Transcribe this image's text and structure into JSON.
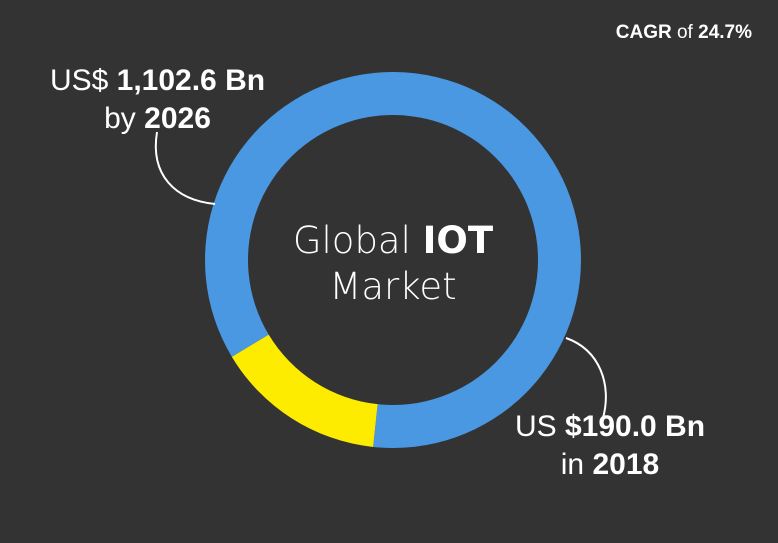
{
  "cagr": {
    "label": "CAGR",
    "of": "of",
    "value": "24.7%"
  },
  "center_title": {
    "line1_regular": "Global",
    "line1_bold": "IOT",
    "line2": "Market"
  },
  "callout_2026": {
    "prefix": "US$",
    "value": "1,102.6 Bn",
    "by": "by",
    "year": "2026"
  },
  "callout_2018": {
    "prefix": "US",
    "value": "$190.0 Bn",
    "in": "in",
    "year": "2018"
  },
  "colors": {
    "background": "#333333",
    "seg_2026": "#4a97e2",
    "seg_2018": "#fdec00",
    "text": "#ffffff"
  },
  "chart_data": {
    "type": "pie",
    "variant": "donut",
    "categories": [
      "2026",
      "2018"
    ],
    "values": [
      1102.6,
      190.0
    ],
    "unit": "US$ Bn",
    "title": "Global IOT Market",
    "annotation": "CAGR of 24.7%"
  }
}
